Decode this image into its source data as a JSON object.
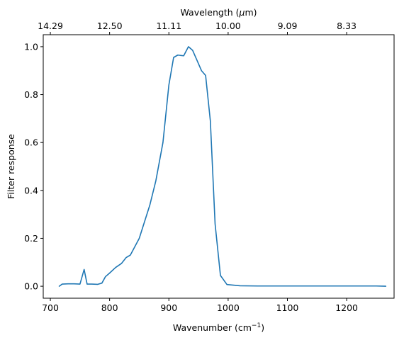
{
  "chart_data": {
    "type": "line",
    "xlabel": "Wavenumber (cm",
    "xlabel_sup": "−1",
    "xlabel_end": ")",
    "ylabel": "Filter response",
    "top_xlabel": "Wavelength (",
    "top_xlabel_mu": "μ",
    "top_xlabel_end": "m)",
    "xlim": [
      688,
      1280
    ],
    "ylim": [
      -0.05,
      1.05
    ],
    "grid": false,
    "legend": "none",
    "x_ticks": [
      700,
      800,
      900,
      1000,
      1100,
      1200
    ],
    "x_tick_labels": [
      "700",
      "800",
      "900",
      "1000",
      "1100",
      "1200"
    ],
    "y_ticks": [
      0.0,
      0.2,
      0.4,
      0.6,
      0.8,
      1.0
    ],
    "y_tick_labels": [
      "0.0",
      "0.2",
      "0.4",
      "0.6",
      "0.8",
      "1.0"
    ],
    "top_x_ticks": [
      700,
      800,
      900,
      1000,
      1100,
      1200
    ],
    "top_tick_labels": [
      "14.29",
      "12.50",
      "11.11",
      "10.00",
      "9.09",
      "8.33"
    ],
    "series": [
      {
        "color": "#1f77b4",
        "x": [
          715,
          720,
          730,
          740,
          750,
          757,
          762,
          770,
          780,
          787,
          793,
          800,
          810,
          820,
          828,
          835,
          850,
          868,
          878,
          890,
          900,
          908,
          915,
          925,
          933,
          940,
          948,
          955,
          962,
          970,
          978,
          987,
          998,
          1020,
          1050,
          1100,
          1150,
          1200,
          1250,
          1266
        ],
        "y": [
          0.0,
          0.009,
          0.01,
          0.01,
          0.009,
          0.07,
          0.009,
          0.009,
          0.008,
          0.013,
          0.04,
          0.055,
          0.078,
          0.095,
          0.12,
          0.13,
          0.2,
          0.34,
          0.44,
          0.6,
          0.84,
          0.955,
          0.965,
          0.962,
          1.0,
          0.985,
          0.94,
          0.9,
          0.88,
          0.69,
          0.26,
          0.045,
          0.007,
          0.002,
          0.001,
          0.001,
          0.001,
          0.001,
          0.001,
          0.0
        ]
      }
    ]
  }
}
